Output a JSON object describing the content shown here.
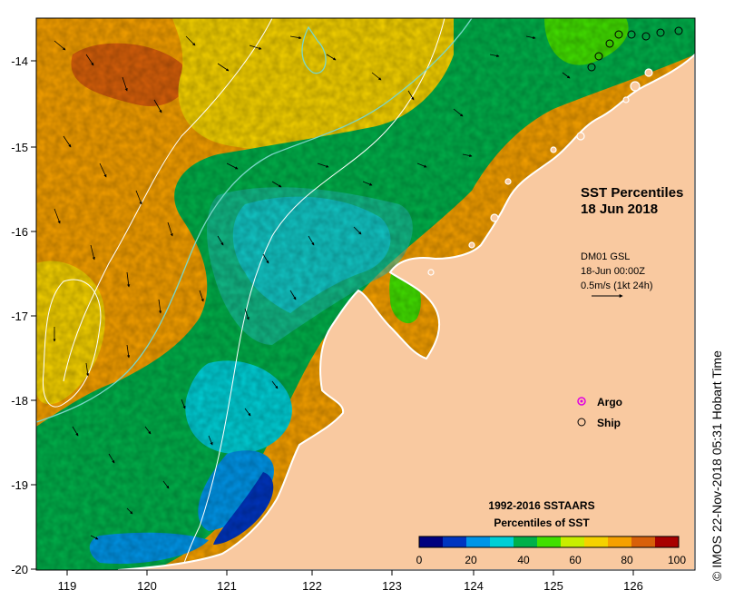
{
  "title": {
    "line1": "SST Percentiles",
    "line2": "18 Jun 2018"
  },
  "current_info": {
    "line1": "DM01 GSL",
    "line2": "18-Jun 00:00Z",
    "line3": "0.5m/s (1kt 24h)"
  },
  "legend": {
    "argo_label": "Argo",
    "ship_label": "Ship",
    "argo_color": "#e000e0"
  },
  "colorbar": {
    "title_line1": "1992-2016 SSTAARS",
    "title_line2": "Percentiles of SST",
    "ticks": [
      "0",
      "20",
      "40",
      "60",
      "80",
      "100"
    ],
    "colors": [
      "#00007f",
      "#0035c0",
      "#0095e8",
      "#00cfd6",
      "#00b04a",
      "#42e000",
      "#c8ee00",
      "#f5d200",
      "#f5a000",
      "#d8600a",
      "#a80000"
    ]
  },
  "x_axis": {
    "ticks": [
      "119",
      "120",
      "121",
      "122",
      "123",
      "124",
      "125",
      "126"
    ]
  },
  "y_axis": {
    "ticks": [
      "-14",
      "-15",
      "-16",
      "-17",
      "-18",
      "-19",
      "-20"
    ]
  },
  "credit": "© IMOS 22-Nov-2018 05:31 Hobart Time",
  "colors": {
    "land": "#f9c9a0",
    "isoline": "#7ad6c8",
    "isoline_white": "#ffffff"
  }
}
